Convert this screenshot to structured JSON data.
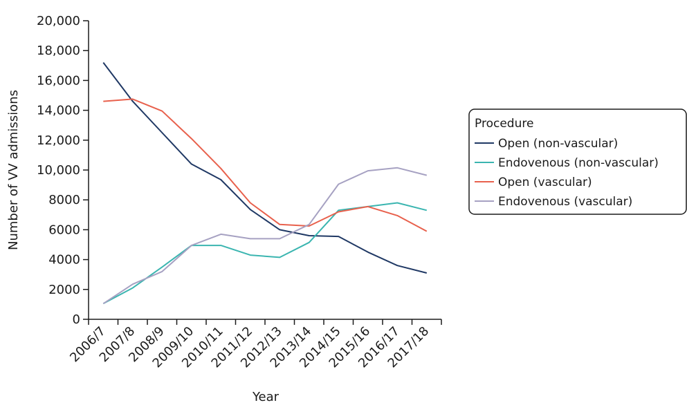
{
  "chart_data": {
    "type": "line",
    "xlabel": "Year",
    "ylabel": "Number of VV admissions",
    "ylim": [
      0,
      20000
    ],
    "yticks": [
      0,
      2000,
      4000,
      6000,
      8000,
      10000,
      12000,
      14000,
      16000,
      18000,
      20000
    ],
    "ytick_labels": [
      "0",
      "2000",
      "4000",
      "6000",
      "8000",
      "10,000",
      "12,000",
      "14,000",
      "16,000",
      "18,000",
      "20,000"
    ],
    "categories": [
      "2006/7",
      "2007/8",
      "2008/9",
      "2009/10",
      "2010/11",
      "2011/12",
      "2012/13",
      "2013/14",
      "2014/15",
      "2015/16",
      "2016/17",
      "2017/18"
    ],
    "legend": {
      "title": "Procedure",
      "placement": "right"
    },
    "grid": false,
    "series": [
      {
        "name": "Open (non-vascular)",
        "color": "#1f3864",
        "values": [
          17200,
          14600,
          12500,
          10400,
          9350,
          7350,
          6000,
          5600,
          5550,
          4500,
          3600,
          3100
        ]
      },
      {
        "name": "Endovenous (non-vascular)",
        "color": "#3ab5b0",
        "values": [
          1050,
          2100,
          3500,
          4950,
          4950,
          4300,
          4150,
          5150,
          7300,
          7550,
          7800,
          7300
        ]
      },
      {
        "name": "Open (vascular)",
        "color": "#e8604c",
        "values": [
          14600,
          14750,
          13950,
          12100,
          10100,
          7800,
          6350,
          6250,
          7200,
          7550,
          6950,
          5900
        ]
      },
      {
        "name": "Endovenous (vascular)",
        "color": "#a6a1c2",
        "values": [
          1050,
          2350,
          3200,
          4950,
          5700,
          5400,
          5400,
          6350,
          9050,
          9950,
          10150,
          9650
        ]
      }
    ]
  }
}
